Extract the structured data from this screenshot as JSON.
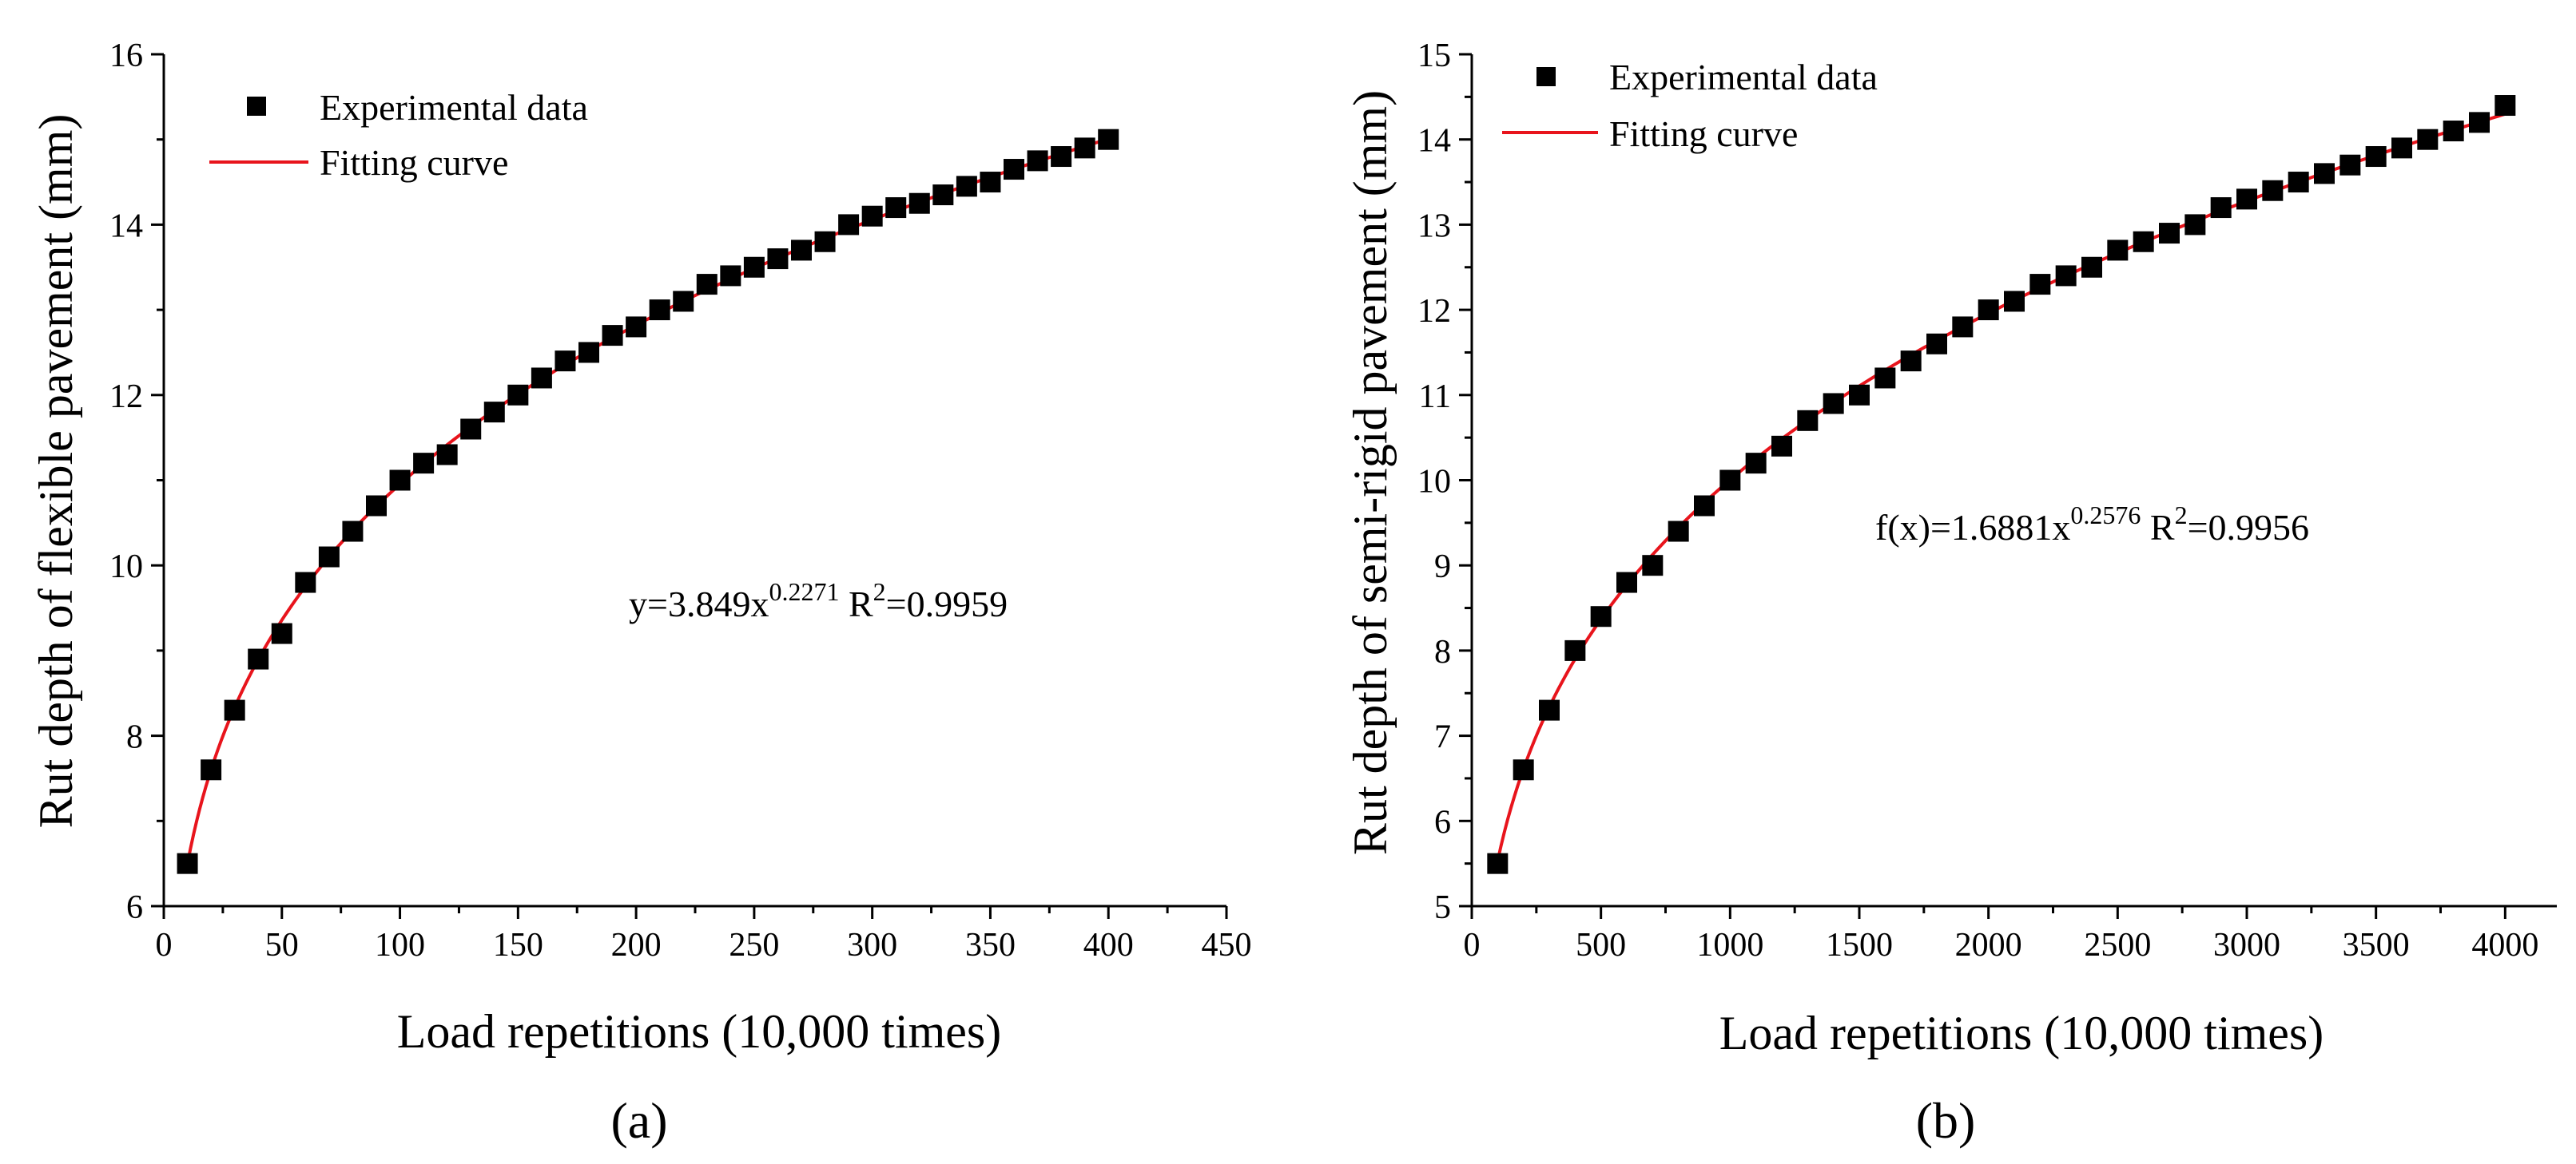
{
  "chart_data": [
    {
      "type": "scatter",
      "panel_label": "(a)",
      "xlabel": "Load repetitions (10,000 times)",
      "ylabel": "Rut depth of flexible pavement (mm)",
      "xlim": [
        0,
        450
      ],
      "ylim": [
        6,
        16
      ],
      "xticks": [
        0,
        50,
        100,
        150,
        200,
        250,
        300,
        350,
        400,
        450
      ],
      "yticks": [
        6,
        8,
        10,
        12,
        14,
        16
      ],
      "legend": {
        "scatter_label": "Experimental data",
        "line_label": "Fitting curve",
        "position": "top-left"
      },
      "equation": {
        "prefix": "y=3.849x",
        "exponent": "0.2271",
        "r_text": " R",
        "r_sup": "2",
        "r_value": "=0.9959"
      },
      "fit": {
        "a": 3.849,
        "b": 0.2271
      },
      "line_color": "#e8141c",
      "marker_color": "#000000",
      "series": [
        {
          "name": "Experimental data",
          "x": [
            10,
            20,
            30,
            40,
            50,
            60,
            70,
            80,
            90,
            100,
            110,
            120,
            130,
            140,
            150,
            160,
            170,
            180,
            190,
            200,
            210,
            220,
            230,
            240,
            250,
            260,
            270,
            280,
            290,
            300,
            310,
            320,
            330,
            340,
            350,
            360,
            370,
            380,
            390,
            400
          ],
          "y": [
            6.5,
            7.6,
            8.3,
            8.9,
            9.2,
            9.8,
            10.1,
            10.4,
            10.7,
            11.0,
            11.2,
            11.3,
            11.6,
            11.8,
            12.0,
            12.2,
            12.4,
            12.5,
            12.7,
            12.8,
            13.0,
            13.1,
            13.3,
            13.4,
            13.5,
            13.6,
            13.7,
            13.8,
            14.0,
            14.1,
            14.2,
            14.25,
            14.35,
            14.45,
            14.5,
            14.65,
            14.75,
            14.8,
            14.9,
            15.0
          ]
        }
      ]
    },
    {
      "type": "scatter",
      "panel_label": "(b)",
      "xlabel": "Load repetitions (10,000 times)",
      "ylabel": "Rut depth of semi-rigid pavement (mm)",
      "xlim": [
        0,
        4200
      ],
      "ylim": [
        5,
        15
      ],
      "xticks": [
        0,
        500,
        1000,
        1500,
        2000,
        2500,
        3000,
        3500,
        4000
      ],
      "yticks": [
        5,
        6,
        7,
        8,
        9,
        10,
        11,
        12,
        13,
        14,
        15
      ],
      "legend": {
        "scatter_label": "Experimental data",
        "line_label": "Fitting curve",
        "position": "top-left"
      },
      "equation": {
        "prefix": "f(x)=1.6881x",
        "exponent": "0.2576",
        "r_text": " R",
        "r_sup": "2",
        "r_value": "=0.9956"
      },
      "fit": {
        "a": 1.6881,
        "b": 0.2576
      },
      "line_color": "#e8141c",
      "marker_color": "#000000",
      "series": [
        {
          "name": "Experimental data",
          "x": [
            100,
            200,
            300,
            400,
            500,
            600,
            700,
            800,
            900,
            1000,
            1100,
            1200,
            1300,
            1400,
            1500,
            1600,
            1700,
            1800,
            1900,
            2000,
            2100,
            2200,
            2300,
            2400,
            2500,
            2600,
            2700,
            2800,
            2900,
            3000,
            3100,
            3200,
            3300,
            3400,
            3500,
            3600,
            3700,
            3800,
            3900,
            4000
          ],
          "y": [
            5.5,
            6.6,
            7.3,
            8.0,
            8.4,
            8.8,
            9.0,
            9.4,
            9.7,
            10.0,
            10.2,
            10.4,
            10.7,
            10.9,
            11.0,
            11.2,
            11.4,
            11.6,
            11.8,
            12.0,
            12.1,
            12.3,
            12.4,
            12.5,
            12.7,
            12.8,
            12.9,
            13.0,
            13.2,
            13.3,
            13.4,
            13.5,
            13.6,
            13.7,
            13.8,
            13.9,
            14.0,
            14.1,
            14.2,
            14.4
          ]
        }
      ]
    }
  ]
}
